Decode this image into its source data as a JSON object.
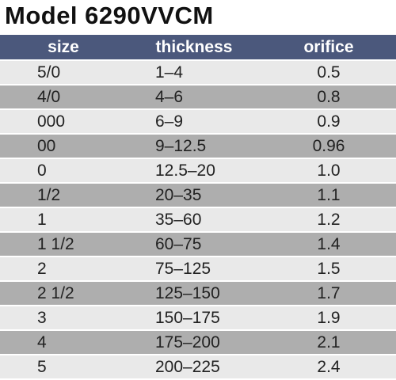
{
  "header": {
    "title": "Model 6290VVCM"
  },
  "table": {
    "columns": [
      "size",
      "thickness",
      "orifice"
    ],
    "rows": [
      [
        "5/0",
        "1–4",
        "0.5"
      ],
      [
        "4/0",
        "4–6",
        "0.8"
      ],
      [
        "000",
        "6–9",
        "0.9"
      ],
      [
        "00",
        "9–12.5",
        "0.96"
      ],
      [
        "0",
        "12.5–20",
        "1.0"
      ],
      [
        "1/2",
        "20–35",
        "1.1"
      ],
      [
        "1",
        "35–60",
        "1.2"
      ],
      [
        "1 1/2",
        "60–75",
        "1.4"
      ],
      [
        "2",
        "75–125",
        "1.5"
      ],
      [
        "2 1/2",
        "125–150",
        "1.7"
      ],
      [
        "3",
        "150–175",
        "1.9"
      ],
      [
        "4",
        "175–200",
        "2.1"
      ],
      [
        "5",
        "200–225",
        "2.4"
      ]
    ]
  }
}
